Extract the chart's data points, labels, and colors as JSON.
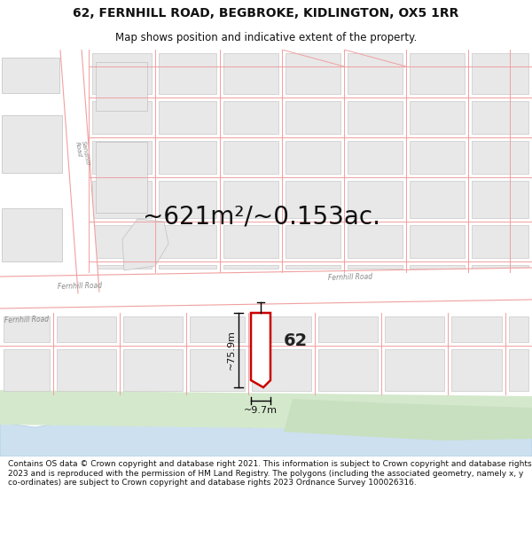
{
  "title": "62, FERNHILL ROAD, BEGBROKE, KIDLINGTON, OX5 1RR",
  "subtitle": "Map shows position and indicative extent of the property.",
  "area_text": "~621m²/~0.153ac.",
  "width_text": "~9.7m",
  "height_text": "~75.9m",
  "label_62": "62",
  "footer": "Contains OS data © Crown copyright and database right 2021. This information is subject to Crown copyright and database rights 2023 and is reproduced with the permission of HM Land Registry. The polygons (including the associated geometry, namely x, y co-ordinates) are subject to Crown copyright and database rights 2023 Ordnance Survey 100026316.",
  "bg_color": "#ffffff",
  "map_bg": "#ffffff",
  "road_fill": "#ffffff",
  "building_fill": "#e8e8e8",
  "building_edge": "#c0c0c0",
  "highlight_color": "#cc0000",
  "road_line_color": "#f0a0a0",
  "road_label_color": "#888888",
  "green_color": "#d8e8d0",
  "water_color": "#c8dce8",
  "title_fontsize": 10,
  "subtitle_fontsize": 8.5,
  "area_fontsize": 20,
  "label_fontsize": 14,
  "dim_fontsize": 8,
  "footer_fontsize": 6.5,
  "map_border_color": "#cccccc"
}
